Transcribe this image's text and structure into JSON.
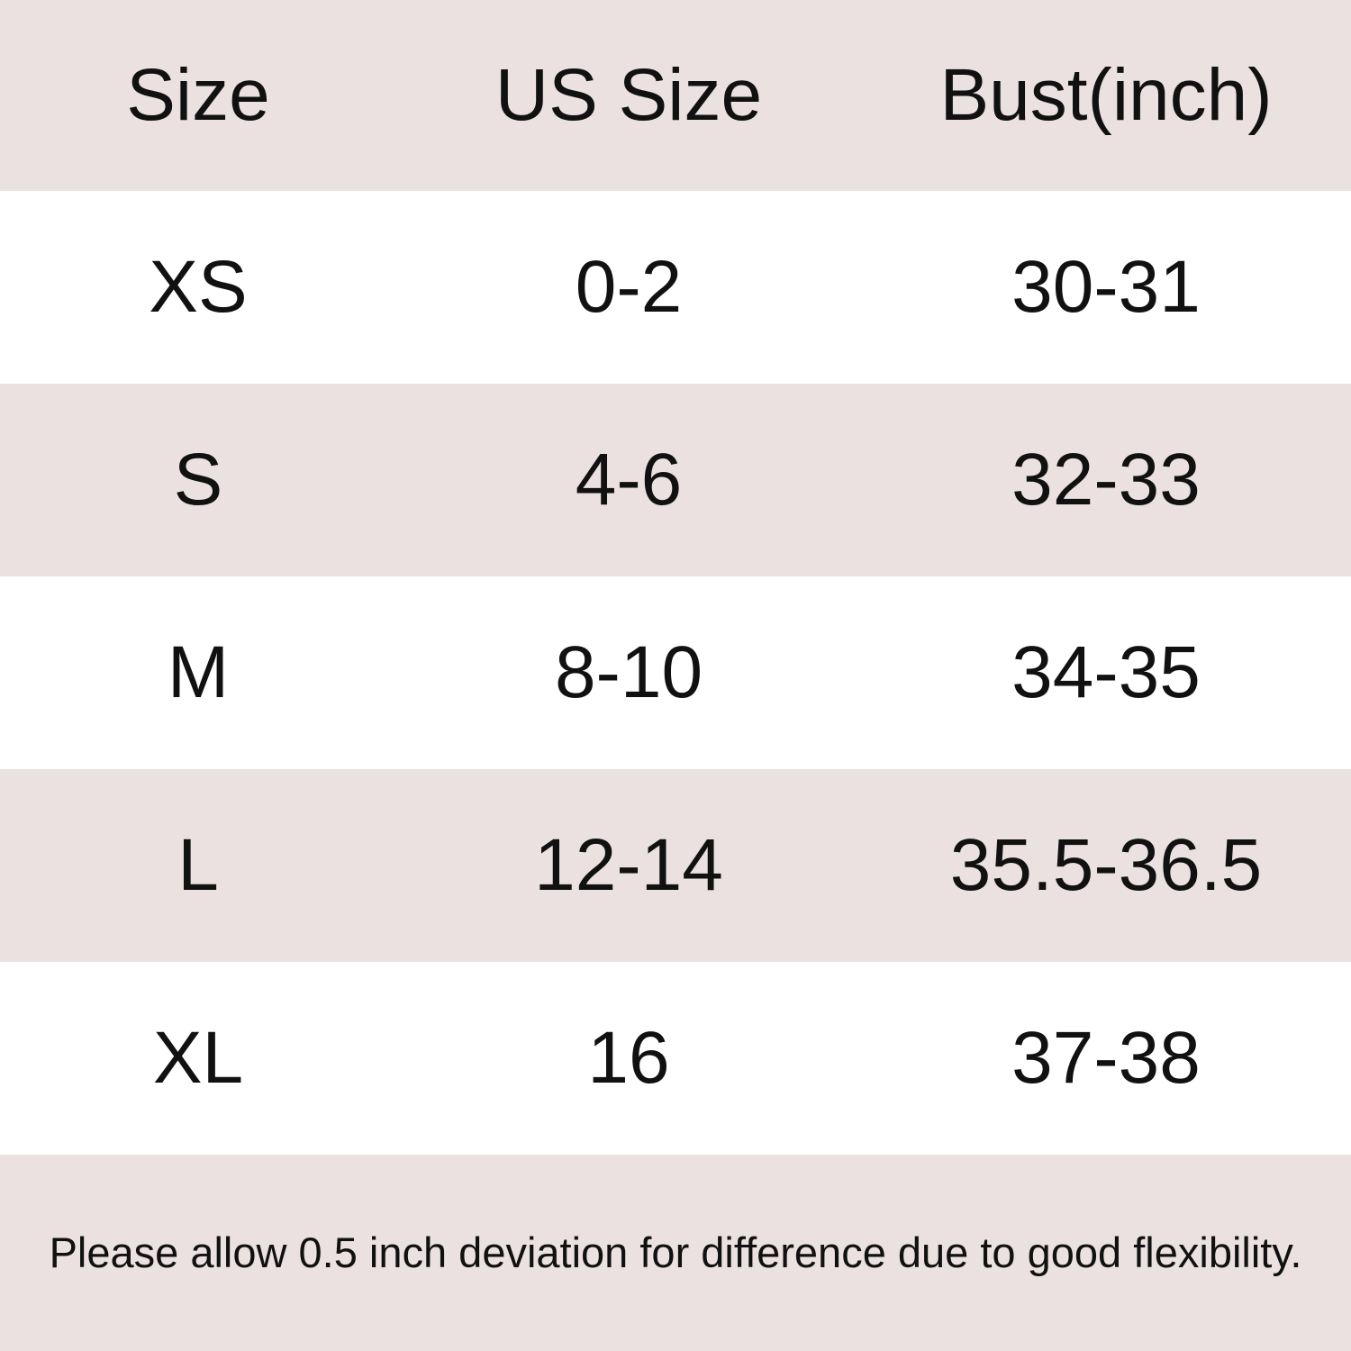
{
  "chart_data": {
    "type": "table",
    "columns": [
      "Size",
      "US Size",
      "Bust(inch)"
    ],
    "rows": [
      {
        "size": "XS",
        "us_size": "0-2",
        "bust_inch": "30-31"
      },
      {
        "size": "S",
        "us_size": "4-6",
        "bust_inch": "32-33"
      },
      {
        "size": "M",
        "us_size": "8-10",
        "bust_inch": "34-35"
      },
      {
        "size": "L",
        "us_size": "12-14",
        "bust_inch": "35.5-36.5"
      },
      {
        "size": "XL",
        "us_size": "16",
        "bust_inch": "37-38"
      }
    ],
    "annotation": "Please allow 0.5 inch deviation for difference due to good flexibility.",
    "layout": {
      "row_striping": "header pink, then white/pink alternating, pink footer",
      "column_alignment": "center"
    }
  },
  "colors": {
    "band_pink": "#ece1e1",
    "row_white": "#ffffff",
    "text": "#111111"
  }
}
